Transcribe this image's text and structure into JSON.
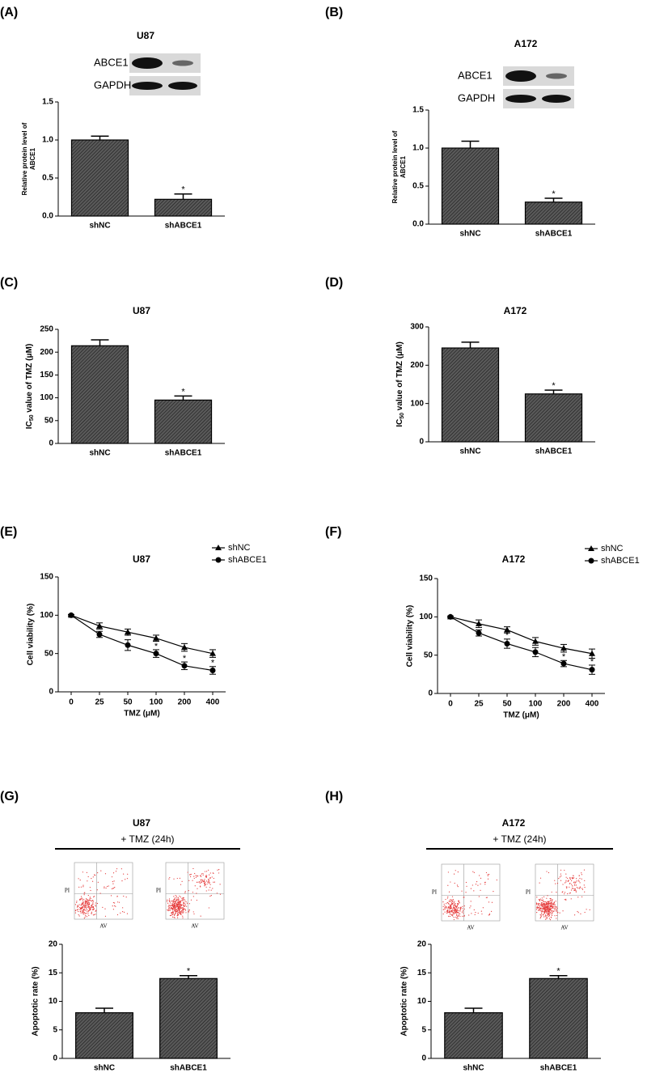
{
  "chart_data": [
    {
      "type": "bar",
      "panel": "(A)",
      "title": "U87",
      "blot_labels": [
        "ABCE1",
        "GAPDH"
      ],
      "y_label": [
        "Relative protein level of",
        "ABCE1"
      ],
      "categories": [
        "shNC",
        "shABCE1"
      ],
      "values": [
        1.0,
        0.22
      ],
      "errors": [
        0.05,
        0.07
      ],
      "significance": [
        null,
        "*"
      ],
      "ylim": [
        0,
        1.5
      ],
      "yticks": [
        {
          "value": 0,
          "label": "0.0"
        },
        0.5,
        {
          "value": 1,
          "label": "1.0"
        },
        1.5
      ],
      "color": "#5a5a5a"
    },
    {
      "type": "bar",
      "panel": "(B)",
      "title": "A172",
      "blot_labels": [
        "ABCE1",
        "GAPDH"
      ],
      "y_label": [
        "Relative protein level of",
        "ABCE1"
      ],
      "categories": [
        "shNC",
        "shABCE1"
      ],
      "values": [
        1.0,
        0.29
      ],
      "errors": [
        0.09,
        0.05
      ],
      "significance": [
        null,
        "*"
      ],
      "ylim": [
        0,
        1.5
      ],
      "yticks": [
        {
          "value": 0,
          "label": "0.0"
        },
        0.5,
        {
          "value": 1,
          "label": "1.0"
        },
        1.5
      ],
      "color": "#5a5a5a"
    },
    {
      "type": "bar",
      "panel": "(C)",
      "title": "U87",
      "y_label": [
        "IC",
        "50",
        " value of TMZ (μM)"
      ],
      "categories": [
        "shNC",
        "shABCE1"
      ],
      "values": [
        214,
        95
      ],
      "errors": [
        13,
        9
      ],
      "significance": [
        null,
        "*"
      ],
      "ylim": [
        0,
        250
      ],
      "yticks": [
        0,
        50,
        100,
        150,
        200,
        250
      ],
      "color": "#5a5a5a"
    },
    {
      "type": "bar",
      "panel": "(D)",
      "title": "A172",
      "y_label": [
        "IC",
        "50",
        " value of TMZ (μM)"
      ],
      "categories": [
        "shNC",
        "shABCE1"
      ],
      "values": [
        245,
        125
      ],
      "errors": [
        15,
        10
      ],
      "significance": [
        null,
        "*"
      ],
      "ylim": [
        0,
        300
      ],
      "yticks": [
        0,
        100,
        200,
        300
      ],
      "color": "#5a5a5a"
    },
    {
      "type": "line",
      "panel": "(E)",
      "title": "U87",
      "y_label": "Cell viability (%)",
      "x_label": "TMZ (μM)",
      "categories": [
        0,
        25,
        50,
        100,
        200,
        400
      ],
      "legend": "upper right",
      "series": [
        {
          "name": "shNC",
          "marker": "triangle",
          "color": "#000000",
          "values": [
            100,
            86,
            78,
            70,
            58,
            50
          ],
          "errors": [
            1,
            4,
            4,
            4,
            5,
            5
          ],
          "significance": [
            null,
            null,
            null,
            null,
            null,
            null
          ]
        },
        {
          "name": "shABCE1",
          "marker": "circle",
          "color": "#000000",
          "values": [
            100,
            75,
            61,
            50,
            34,
            28
          ],
          "errors": [
            1,
            4,
            7,
            5,
            5,
            5
          ],
          "significance": [
            null,
            null,
            "*",
            "*",
            "*",
            "*"
          ]
        }
      ],
      "ylim": [
        0,
        150
      ],
      "yticks": [
        0,
        50,
        100,
        150
      ]
    },
    {
      "type": "line",
      "panel": "(F)",
      "title": "A172",
      "y_label": "Cell viability (%)",
      "x_label": "TMZ (μM)",
      "categories": [
        0,
        25,
        50,
        100,
        200,
        400
      ],
      "legend": "upper right",
      "series": [
        {
          "name": "shNC",
          "marker": "triangle",
          "color": "#000000",
          "values": [
            100,
            91,
            83,
            68,
            59,
            52
          ],
          "errors": [
            1,
            5,
            4,
            5,
            5,
            6
          ],
          "significance": [
            null,
            null,
            null,
            null,
            null,
            null
          ]
        },
        {
          "name": "shABCE1",
          "marker": "circle",
          "color": "#000000",
          "values": [
            100,
            79,
            65,
            54,
            39,
            31
          ],
          "errors": [
            1,
            4,
            6,
            6,
            4,
            6
          ],
          "significance": [
            null,
            null,
            "*",
            null,
            "*",
            "*"
          ]
        }
      ],
      "ylim": [
        0,
        150
      ],
      "yticks": [
        0,
        50,
        100,
        150
      ]
    },
    {
      "type": "bar",
      "panel": "(G)",
      "title": "U87",
      "flow": {
        "header": "+ TMZ (24h)",
        "x_label": "AV",
        "y_label": "PI"
      },
      "y_label": "Apoptotic rate (%)",
      "categories": [
        "shNC",
        "shABCE1"
      ],
      "values": [
        8.0,
        14.0
      ],
      "errors": [
        0.8,
        0.5
      ],
      "significance": [
        null,
        "*"
      ],
      "ylim": [
        0,
        20
      ],
      "yticks": [
        0,
        5,
        10,
        15,
        20
      ],
      "color": "#5a5a5a"
    },
    {
      "type": "bar",
      "panel": "(H)",
      "title": "A172",
      "flow": {
        "header": "+ TMZ (24h)",
        "x_label": "AV",
        "y_label": "PI"
      },
      "y_label": "Apoptotic rate (%)",
      "categories": [
        "shNC",
        "shABCE1"
      ],
      "values": [
        8.0,
        14.0
      ],
      "errors": [
        0.8,
        0.5
      ],
      "significance": [
        null,
        "*"
      ],
      "ylim": [
        0,
        20
      ],
      "yticks": [
        0,
        5,
        10,
        15,
        20
      ],
      "color": "#5a5a5a"
    }
  ]
}
